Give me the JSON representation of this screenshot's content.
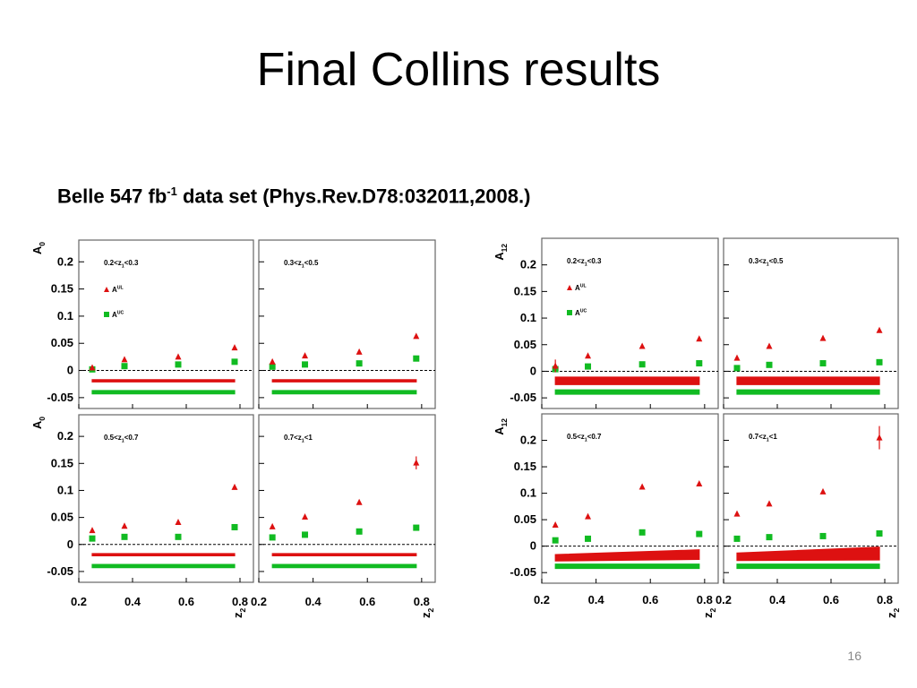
{
  "slide": {
    "title": "Final Collins results",
    "subtitle_main": "Belle 547 fb",
    "subtitle_sup": "-1",
    "subtitle_rest": " data set (Phys.Rev.D78:032011,2008.)",
    "page_number": "16"
  },
  "colors": {
    "ul": "#dd1111",
    "uc": "#11bb22",
    "frame": "#666666"
  },
  "chart_data": [
    {
      "type": "scatter",
      "ylabel": "A",
      "ylabel_sub": "0",
      "xlabel": "z",
      "xlabel_sub": "2",
      "xlim": [
        0.2,
        0.85
      ],
      "ylim": [
        -0.07,
        0.24
      ],
      "yticks": [
        "0.2",
        "0.15",
        "0.1",
        "0.05",
        "0",
        "-0.05"
      ],
      "ytick_values": [
        0.2,
        0.15,
        0.1,
        0.05,
        0,
        -0.05
      ],
      "xticks": [
        "0.2",
        "0.4",
        "0.6",
        "0.8"
      ],
      "xtick_values": [
        0.2,
        0.4,
        0.6,
        0.8
      ],
      "legend_ul": "A",
      "legend_ul_sup": "UL",
      "legend_uc": "A",
      "legend_uc_sup": "UC",
      "panels": [
        {
          "label": "0.2<z",
          "label_sub": "1",
          "label_rest": "<0.3",
          "ul": {
            "x": [
              0.25,
              0.37,
              0.57,
              0.78
            ],
            "y": [
              0.005,
              0.02,
              0.025,
              0.042
            ]
          },
          "uc": {
            "x": [
              0.25,
              0.37,
              0.57,
              0.78
            ],
            "y": [
              0.002,
              0.008,
              0.011,
              0.016
            ]
          },
          "band_ul": {
            "x": [
              0.25,
              0.78
            ],
            "y": [
              -0.019,
              -0.019
            ],
            "w": [
              0.002,
              0.002
            ]
          },
          "band_uc": {
            "x": [
              0.25,
              0.78
            ],
            "y": [
              -0.04,
              -0.04
            ],
            "w": [
              0.003,
              0.003
            ]
          }
        },
        {
          "label": "0.3<z",
          "label_sub": "1",
          "label_rest": "<0.5",
          "ul": {
            "x": [
              0.25,
              0.37,
              0.57,
              0.78
            ],
            "y": [
              0.016,
              0.027,
              0.034,
              0.063
            ]
          },
          "uc": {
            "x": [
              0.25,
              0.37,
              0.57,
              0.78
            ],
            "y": [
              0.007,
              0.011,
              0.013,
              0.022
            ]
          },
          "band_ul": {
            "x": [
              0.25,
              0.78
            ],
            "y": [
              -0.019,
              -0.019
            ],
            "w": [
              0.002,
              0.002
            ]
          },
          "band_uc": {
            "x": [
              0.25,
              0.78
            ],
            "y": [
              -0.04,
              -0.04
            ],
            "w": [
              0.003,
              0.003
            ]
          }
        },
        {
          "label": "0.5<z",
          "label_sub": "1",
          "label_rest": "<0.7",
          "ul": {
            "x": [
              0.25,
              0.37,
              0.57,
              0.78
            ],
            "y": [
              0.026,
              0.034,
              0.041,
              0.106
            ]
          },
          "uc": {
            "x": [
              0.25,
              0.37,
              0.57,
              0.78
            ],
            "y": [
              0.011,
              0.014,
              0.014,
              0.032
            ]
          },
          "band_ul": {
            "x": [
              0.25,
              0.78
            ],
            "y": [
              -0.019,
              -0.019
            ],
            "w": [
              0.002,
              0.002
            ]
          },
          "band_uc": {
            "x": [
              0.25,
              0.78
            ],
            "y": [
              -0.04,
              -0.04
            ],
            "w": [
              0.003,
              0.003
            ]
          }
        },
        {
          "label": "0.7<z",
          "label_sub": "1",
          "label_rest": "<1",
          "ul": {
            "x": [
              0.25,
              0.37,
              0.57,
              0.78
            ],
            "y": [
              0.033,
              0.051,
              0.078,
              0.151
            ],
            "err": [
              0,
              0,
              0,
              0.012
            ]
          },
          "uc": {
            "x": [
              0.25,
              0.37,
              0.57,
              0.78
            ],
            "y": [
              0.013,
              0.018,
              0.024,
              0.031
            ]
          },
          "band_ul": {
            "x": [
              0.25,
              0.78
            ],
            "y": [
              -0.019,
              -0.019
            ],
            "w": [
              0.002,
              0.002
            ]
          },
          "band_uc": {
            "x": [
              0.25,
              0.78
            ],
            "y": [
              -0.04,
              -0.04
            ],
            "w": [
              0.003,
              0.003
            ]
          }
        }
      ]
    },
    {
      "type": "scatter",
      "ylabel": "A",
      "ylabel_sub": "12",
      "xlabel": "z",
      "xlabel_sub": "2",
      "xlim": [
        0.2,
        0.85
      ],
      "ylim": [
        -0.07,
        0.25
      ],
      "yticks": [
        "0.2",
        "0.15",
        "0.1",
        "0.05",
        "0",
        "-0.05"
      ],
      "ytick_values": [
        0.2,
        0.15,
        0.1,
        0.05,
        0,
        -0.05
      ],
      "xticks": [
        "0.2",
        "0.4",
        "0.6",
        "0.8"
      ],
      "xtick_values": [
        0.2,
        0.4,
        0.6,
        0.8
      ],
      "legend_ul": "A",
      "legend_ul_sup": "UL",
      "legend_uc": "A",
      "legend_uc_sup": "UC",
      "panels": [
        {
          "label": "0.2<z",
          "label_sub": "1",
          "label_rest": "<0.3",
          "ul": {
            "x": [
              0.25,
              0.37,
              0.57,
              0.78
            ],
            "y": [
              0.01,
              0.029,
              0.047,
              0.061
            ],
            "err": [
              0.012,
              0,
              0,
              0
            ]
          },
          "uc": {
            "x": [
              0.25,
              0.37,
              0.57,
              0.78
            ],
            "y": [
              0.004,
              0.009,
              0.013,
              0.015
            ]
          },
          "band_ul": {
            "x": [
              0.25,
              0.78
            ],
            "y": [
              -0.018,
              -0.018
            ],
            "w": [
              0.007,
              0.007
            ]
          },
          "band_uc": {
            "x": [
              0.25,
              0.78
            ],
            "y": [
              -0.039,
              -0.039
            ],
            "w": [
              0.004,
              0.004
            ]
          }
        },
        {
          "label": "0.3<z",
          "label_sub": "1",
          "label_rest": "<0.5",
          "ul": {
            "x": [
              0.25,
              0.37,
              0.57,
              0.78
            ],
            "y": [
              0.025,
              0.047,
              0.062,
              0.077
            ]
          },
          "uc": {
            "x": [
              0.25,
              0.37,
              0.57,
              0.78
            ],
            "y": [
              0.006,
              0.012,
              0.015,
              0.017
            ]
          },
          "band_ul": {
            "x": [
              0.25,
              0.78
            ],
            "y": [
              -0.018,
              -0.018
            ],
            "w": [
              0.007,
              0.007
            ]
          },
          "band_uc": {
            "x": [
              0.25,
              0.78
            ],
            "y": [
              -0.039,
              -0.039
            ],
            "w": [
              0.004,
              0.004
            ]
          }
        },
        {
          "label": "0.5<z",
          "label_sub": "1",
          "label_rest": "<0.7",
          "ul": {
            "x": [
              0.25,
              0.37,
              0.57,
              0.78
            ],
            "y": [
              0.04,
              0.056,
              0.112,
              0.118
            ]
          },
          "uc": {
            "x": [
              0.25,
              0.37,
              0.57,
              0.78
            ],
            "y": [
              0.011,
              0.014,
              0.026,
              0.023
            ]
          },
          "band_ul": {
            "x": [
              0.25,
              0.78
            ],
            "y": [
              -0.022,
              -0.016
            ],
            "w": [
              0.006,
              0.009
            ]
          },
          "band_uc": {
            "x": [
              0.25,
              0.78
            ],
            "y": [
              -0.038,
              -0.038
            ],
            "w": [
              0.004,
              0.004
            ]
          }
        },
        {
          "label": "0.7<z",
          "label_sub": "1",
          "label_rest": "<1",
          "ul": {
            "x": [
              0.25,
              0.37,
              0.57,
              0.78
            ],
            "y": [
              0.061,
              0.08,
              0.103,
              0.205
            ],
            "err": [
              0,
              0,
              0,
              0.022
            ]
          },
          "uc": {
            "x": [
              0.25,
              0.37,
              0.57,
              0.78
            ],
            "y": [
              0.014,
              0.017,
              0.019,
              0.024
            ]
          },
          "band_ul": {
            "x": [
              0.25,
              0.78
            ],
            "y": [
              -0.02,
              -0.014
            ],
            "w": [
              0.007,
              0.012
            ]
          },
          "band_uc": {
            "x": [
              0.25,
              0.78
            ],
            "y": [
              -0.038,
              -0.038
            ],
            "w": [
              0.004,
              0.004
            ]
          }
        }
      ]
    }
  ]
}
